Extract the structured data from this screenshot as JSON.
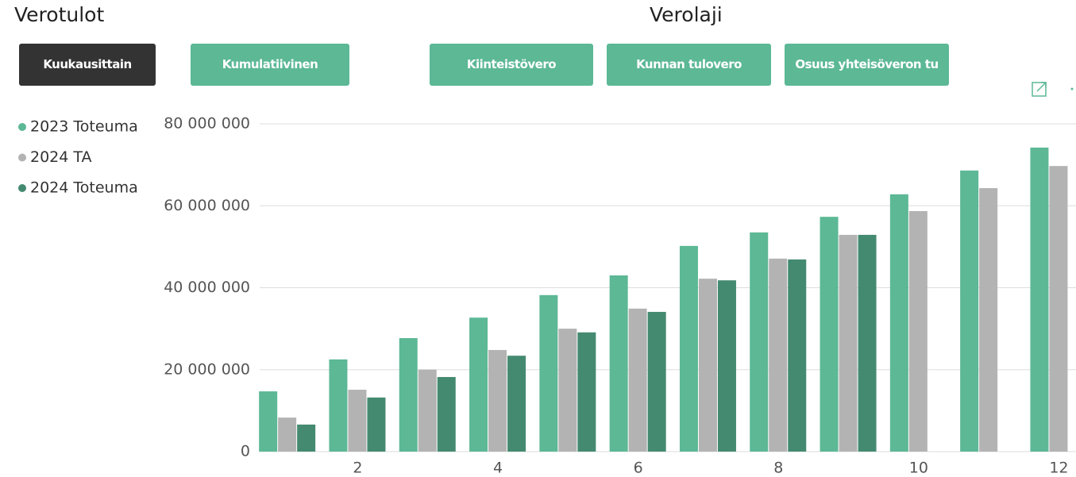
{
  "header": {
    "left_title": "Verotulot",
    "center_title": "Verolaji"
  },
  "buttons": [
    "Kuukausittain",
    "Kumulatiivinen",
    "Kiinteistövero",
    "Kunnan tulovero",
    "Osuus yhteisöveron tu"
  ],
  "chart_data": {
    "type": "bar",
    "categories": [
      null,
      2,
      null,
      4,
      null,
      6,
      null,
      8,
      null,
      10,
      null,
      12
    ],
    "series": [
      {
        "name": "2023 Toteuma",
        "color": "#5cb895",
        "values": [
          14700000,
          22500000,
          27700000,
          32700000,
          38200000,
          43000000,
          50200000,
          53500000,
          57300000,
          62800000,
          68600000,
          74200000
        ]
      },
      {
        "name": "2024 TA",
        "color": "#b3b3b3",
        "values": [
          8300000,
          15100000,
          20000000,
          24800000,
          30000000,
          34900000,
          42200000,
          47100000,
          52900000,
          58700000,
          64300000,
          69700000
        ]
      },
      {
        "name": "2024 Toteuma",
        "color": "#448a70",
        "values": [
          6600000,
          13200000,
          18200000,
          23400000,
          29100000,
          34100000,
          41800000,
          46900000,
          52900000,
          null,
          null,
          null
        ]
      }
    ],
    "ylim": [
      0,
      80000000
    ],
    "yticks": [
      0,
      {
        "value": 20000000,
        "label": "20 000 000"
      },
      {
        "value": 40000000,
        "label": "40 000 000"
      },
      {
        "value": 60000000,
        "label": "60 000 000"
      },
      {
        "value": 80000000,
        "label": "80 000 000"
      }
    ],
    "grid": true,
    "legend": "left"
  }
}
